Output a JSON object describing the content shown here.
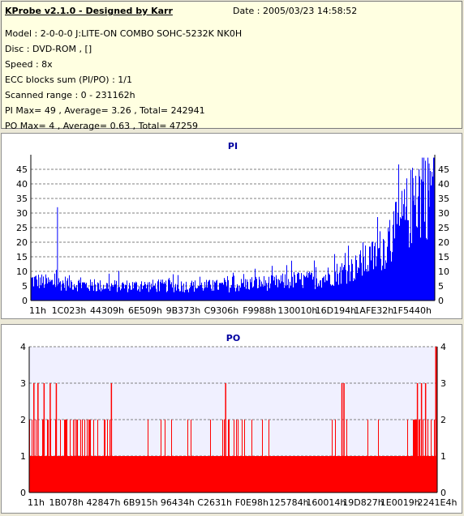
{
  "info": {
    "title": "KProbe v2.1.0 - Designed by Karr",
    "date": "Date : 2005/03/23 14:58:52",
    "lines": [
      "Model : 2-0-0-0 J:LITE-ON COMBO SOHC-5232K NK0H",
      "Disc : DVD-ROM ,  []",
      "Speed : 8x",
      "ECC blocks sum (PI/PO) : 1/1",
      "Scanned range : 0 - 231162h",
      "PI Max= 49 , Average= 3.26 , Total= 242941",
      "PO Max= 4 , Average= 0.63 , Total= 47259"
    ]
  },
  "colors": {
    "pi_series": "#0000ff",
    "po_series": "#ff0000",
    "plot_bg": "#f0f0ff",
    "title": "#0000a0"
  },
  "chart_data": [
    {
      "type": "bar",
      "title": "PI",
      "grid": true,
      "ylim": [
        0,
        50
      ],
      "xlim_hex": [
        0,
        "231162h"
      ],
      "yticks": [
        0,
        5,
        10,
        15,
        20,
        25,
        30,
        35,
        40,
        45
      ],
      "xtick_labels": [
        "11h",
        "1C023h",
        "44309h",
        "6E509h",
        "9B373h",
        "C9306h",
        "F9988h",
        "130010h",
        "16D194h",
        "1AFE32h",
        "1F5440h"
      ],
      "series": [
        {
          "profile": [
            {
              "x": 0.0,
              "y": 7
            },
            {
              "x": 0.05,
              "y": 6
            },
            {
              "x": 0.1,
              "y": 6
            },
            {
              "x": 0.15,
              "y": 5
            },
            {
              "x": 0.2,
              "y": 5
            },
            {
              "x": 0.25,
              "y": 5
            },
            {
              "x": 0.3,
              "y": 5
            },
            {
              "x": 0.35,
              "y": 5
            },
            {
              "x": 0.4,
              "y": 5
            },
            {
              "x": 0.45,
              "y": 5
            },
            {
              "x": 0.5,
              "y": 5
            },
            {
              "x": 0.55,
              "y": 6
            },
            {
              "x": 0.6,
              "y": 6
            },
            {
              "x": 0.65,
              "y": 7
            },
            {
              "x": 0.7,
              "y": 7
            },
            {
              "x": 0.75,
              "y": 9
            },
            {
              "x": 0.8,
              "y": 11
            },
            {
              "x": 0.85,
              "y": 15
            },
            {
              "x": 0.9,
              "y": 23
            },
            {
              "x": 0.95,
              "y": 34
            },
            {
              "x": 1.0,
              "y": 40
            }
          ],
          "spikes": [
            {
              "x": 0.065,
              "y": 32
            },
            {
              "x": 0.968,
              "y": 49
            },
            {
              "x": 0.985,
              "y": 47
            },
            {
              "x": 0.96,
              "y": 45
            },
            {
              "x": 0.945,
              "y": 42
            }
          ]
        }
      ]
    },
    {
      "type": "bar",
      "title": "PO",
      "grid": true,
      "ylim": [
        0,
        4
      ],
      "xlim_hex": [
        0,
        "231162h"
      ],
      "yticks": [
        0,
        1,
        2,
        3,
        4
      ],
      "xtick_labels": [
        "11h",
        "1B078h",
        "42847h",
        "6B915h",
        "96434h",
        "C2631h",
        "F0E98h",
        "125784h",
        "160014h",
        "19D827h",
        "1E0019h",
        "2241E4h"
      ],
      "series": [
        {
          "baseline": 1,
          "twos_regions": [
            [
              0.0,
              0.2
            ],
            [
              0.92,
              1.0
            ]
          ],
          "threes": [
            0.01,
            0.02,
            0.035,
            0.05,
            0.065,
            0.2,
            0.48,
            0.765,
            0.77,
            0.95,
            0.96,
            0.97
          ],
          "fours": [
            0.995
          ]
        }
      ]
    }
  ]
}
